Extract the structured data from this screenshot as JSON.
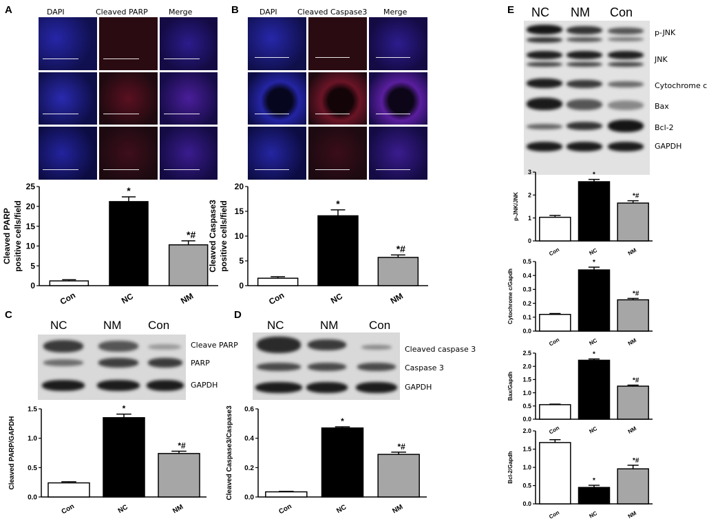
{
  "panels": {
    "A": {
      "letter": "A",
      "headers": [
        "DAPI",
        "Cleaved PARP",
        "Merge"
      ]
    },
    "B": {
      "letter": "B",
      "headers": [
        "DAPI",
        "Cleaved Caspase3",
        "Merge"
      ]
    },
    "C": {
      "letter": "C",
      "lanes": [
        "NC",
        "NM",
        "Con"
      ],
      "blot_labels": [
        "Cleave PARP",
        "PARP",
        "GAPDH"
      ]
    },
    "D": {
      "letter": "D",
      "lanes": [
        "NC",
        "NM",
        "Con"
      ],
      "blot_labels": [
        "Cleaved caspase 3",
        "Caspase 3",
        "GAPDH"
      ]
    },
    "E": {
      "letter": "E",
      "lanes": [
        "NC",
        "NM",
        "Con"
      ],
      "blot_labels": [
        "p-JNK",
        "JNK",
        "Cytochrome c",
        "Bax",
        "Bcl-2",
        "GAPDH"
      ]
    }
  },
  "chart_data": [
    {
      "id": "A-chart",
      "type": "bar",
      "categories": [
        "Con",
        "NC",
        "NM"
      ],
      "values": [
        1.2,
        21.2,
        10.3
      ],
      "errors": [
        0.3,
        1.2,
        1.0
      ],
      "annotations": [
        "",
        "*",
        "*#"
      ],
      "ylabel": [
        "Cleaved PARP",
        "positive cells/field"
      ],
      "ylim": [
        0,
        25
      ],
      "yticks": [
        0,
        5,
        10,
        15,
        20,
        25
      ],
      "ytick_labels": [
        "0",
        "5",
        "10",
        "15",
        "20",
        "25"
      ],
      "colors": [
        "#ffffff",
        "#000000",
        "#a6a6a6"
      ]
    },
    {
      "id": "B-chart",
      "type": "bar",
      "categories": [
        "Con",
        "NC",
        "NM"
      ],
      "values": [
        1.5,
        14.1,
        5.7
      ],
      "errors": [
        0.3,
        1.2,
        0.5
      ],
      "annotations": [
        "",
        "*",
        "*#"
      ],
      "ylabel": [
        "Cleaved Caspase3",
        "positive cells/field"
      ],
      "ylim": [
        0,
        20
      ],
      "yticks": [
        0,
        5,
        10,
        15,
        20
      ],
      "ytick_labels": [
        "0",
        "5",
        "10",
        "15",
        "20"
      ],
      "colors": [
        "#ffffff",
        "#000000",
        "#a6a6a6"
      ]
    },
    {
      "id": "C-chart",
      "type": "bar",
      "categories": [
        "Con",
        "NC",
        "NM"
      ],
      "values": [
        0.24,
        1.35,
        0.74
      ],
      "errors": [
        0.02,
        0.06,
        0.04
      ],
      "annotations": [
        "",
        "*",
        "*#"
      ],
      "ylabel": [
        "Cleaved PARP/GAPDH"
      ],
      "ylim": [
        0,
        1.5
      ],
      "yticks": [
        0,
        0.5,
        1.0,
        1.5
      ],
      "ytick_labels": [
        "0.0",
        "0.5",
        "1.0",
        "1.5"
      ],
      "colors": [
        "#ffffff",
        "#000000",
        "#a6a6a6"
      ]
    },
    {
      "id": "D-chart",
      "type": "bar",
      "categories": [
        "Con",
        "NC",
        "NM"
      ],
      "values": [
        0.035,
        0.47,
        0.29
      ],
      "errors": [
        0.003,
        0.008,
        0.015
      ],
      "annotations": [
        "",
        "*",
        "*#"
      ],
      "ylabel": [
        "Cleaved Caspase3/Caspase3"
      ],
      "ylim": [
        0,
        0.6
      ],
      "yticks": [
        0,
        0.2,
        0.4,
        0.6
      ],
      "ytick_labels": [
        "0.0",
        "0.2",
        "0.4",
        "0.6"
      ],
      "colors": [
        "#ffffff",
        "#000000",
        "#a6a6a6"
      ]
    },
    {
      "id": "E1-chart",
      "type": "bar",
      "categories": [
        "Con",
        "NC",
        "NM"
      ],
      "values": [
        1.03,
        2.58,
        1.65
      ],
      "errors": [
        0.08,
        0.1,
        0.1
      ],
      "annotations": [
        "",
        "*",
        "*#"
      ],
      "ylabel": [
        "p-JNK/JNK"
      ],
      "ylim": [
        0,
        3
      ],
      "yticks": [
        0,
        1,
        2,
        3
      ],
      "ytick_labels": [
        "0",
        "1",
        "2",
        "3"
      ],
      "colors": [
        "#ffffff",
        "#000000",
        "#a6a6a6"
      ]
    },
    {
      "id": "E2-chart",
      "type": "bar",
      "categories": [
        "Con",
        "NC",
        "NM"
      ],
      "values": [
        0.12,
        0.44,
        0.225
      ],
      "errors": [
        0.006,
        0.02,
        0.01
      ],
      "annotations": [
        "",
        "*",
        "*#"
      ],
      "ylabel": [
        "Cytochrome c/Gapdh"
      ],
      "ylim": [
        0,
        0.5
      ],
      "yticks": [
        0,
        0.1,
        0.2,
        0.3,
        0.4,
        0.5
      ],
      "ytick_labels": [
        "0.0",
        "0.1",
        "0.2",
        "0.3",
        "0.4",
        "0.5"
      ],
      "colors": [
        "#ffffff",
        "#000000",
        "#a6a6a6"
      ]
    },
    {
      "id": "E3-chart",
      "type": "bar",
      "categories": [
        "Con",
        "NC",
        "NM"
      ],
      "values": [
        0.55,
        2.23,
        1.25
      ],
      "errors": [
        0.02,
        0.05,
        0.04
      ],
      "annotations": [
        "",
        "*",
        "*#"
      ],
      "ylabel": [
        "Bax/Gapdh"
      ],
      "ylim": [
        0,
        2.5
      ],
      "yticks": [
        0,
        0.5,
        1.0,
        1.5,
        2.0,
        2.5
      ],
      "ytick_labels": [
        "0.0",
        "0.5",
        "1.0",
        "1.5",
        "2.0",
        "2.5"
      ],
      "colors": [
        "#ffffff",
        "#000000",
        "#a6a6a6"
      ]
    },
    {
      "id": "E4-chart",
      "type": "bar",
      "categories": [
        "Con",
        "NC",
        "NM"
      ],
      "values": [
        1.68,
        0.45,
        0.96
      ],
      "errors": [
        0.08,
        0.06,
        0.1
      ],
      "annotations": [
        "",
        "*",
        "*#"
      ],
      "ylabel": [
        "Bcl-2/Gapdh"
      ],
      "ylim": [
        0,
        2.0
      ],
      "yticks": [
        0,
        0.5,
        1.0,
        1.5,
        2.0
      ],
      "ytick_labels": [
        "0.0",
        "0.5",
        "1.0",
        "1.5",
        "2.0"
      ],
      "colors": [
        "#ffffff",
        "#000000",
        "#a6a6a6"
      ]
    }
  ]
}
